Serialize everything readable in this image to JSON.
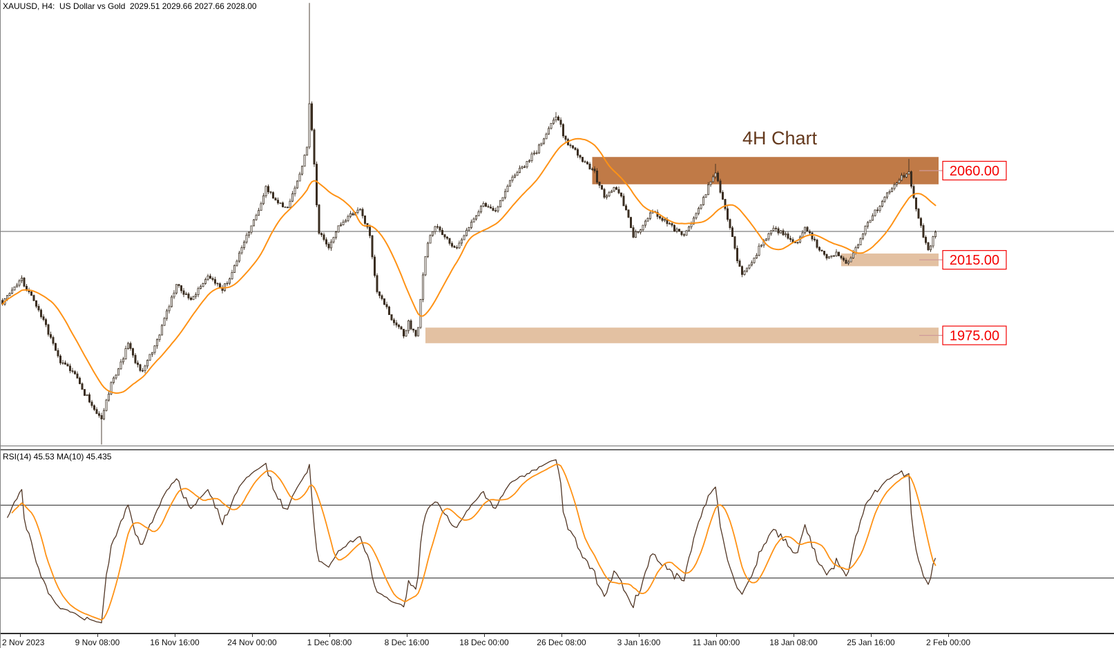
{
  "header": {
    "title": "XAUUSD, H4:  US Dollar vs Gold  2029.51 2029.66 2027.66 2028.00",
    "symbol": "XAUUSD",
    "timeframe": "H4",
    "description": "US Dollar vs Gold",
    "open": "2029.51",
    "high": "2029.66",
    "low": "2027.66",
    "close": "2028.00"
  },
  "rsi_panel": {
    "label": "RSI(14) 45.53 MA(10) 45.435",
    "indicator": "RSI",
    "period": 14,
    "value": 45.53,
    "ma_period": 10,
    "ma_value": 45.435
  },
  "chart_data": {
    "type": "candlestick",
    "title": "XAUUSD H4 - US Dollar vs Gold",
    "annotation": {
      "text": "4H Chart",
      "color": "#653a1e"
    },
    "bars": 387,
    "bar_step": 3.5,
    "bar0_x": 2.5,
    "seed": 7,
    "ylim": [
      1919.0,
      2147.5
    ],
    "price_line": 2028.8,
    "price_line_color": "#5f5f5f",
    "candle_up_color": "#ffffff",
    "candle_down_color": "#3a2d20",
    "candle_stroke_color": "#3a2d20",
    "ma_color": "#ff9215",
    "ma_period": 20,
    "price_keypoints": [
      [
        0,
        1993
      ],
      [
        4,
        1999
      ],
      [
        8,
        2004
      ],
      [
        12,
        1996
      ],
      [
        16,
        1985
      ],
      [
        20,
        1974
      ],
      [
        24,
        1962
      ],
      [
        28,
        1958
      ],
      [
        31,
        1953
      ],
      [
        34,
        1946
      ],
      [
        38,
        1937
      ],
      [
        41,
        1933
      ],
      [
        45,
        1950
      ],
      [
        48,
        1958
      ],
      [
        52,
        1971
      ],
      [
        55,
        1962
      ],
      [
        58,
        1957
      ],
      [
        62,
        1967
      ],
      [
        65,
        1977
      ],
      [
        68,
        1988
      ],
      [
        72,
        2002
      ],
      [
        75,
        1998
      ],
      [
        78,
        1994
      ],
      [
        82,
        2000
      ],
      [
        85,
        2006
      ],
      [
        88,
        2003
      ],
      [
        91,
        1999
      ],
      [
        95,
        2008
      ],
      [
        98,
        2017
      ],
      [
        101,
        2026
      ],
      [
        105,
        2037
      ],
      [
        109,
        2051
      ],
      [
        112,
        2047
      ],
      [
        114,
        2043
      ],
      [
        118,
        2041
      ],
      [
        121,
        2050
      ],
      [
        124,
        2062
      ],
      [
        126,
        2072
      ],
      [
        127,
        2095
      ],
      [
        128,
        2080
      ],
      [
        129,
        2062
      ],
      [
        130,
        2042
      ],
      [
        131,
        2028
      ],
      [
        133,
        2024
      ],
      [
        135,
        2021
      ],
      [
        137,
        2026
      ],
      [
        139,
        2031
      ],
      [
        142,
        2035
      ],
      [
        144,
        2038
      ],
      [
        148,
        2040
      ],
      [
        150,
        2034
      ],
      [
        152,
        2026
      ],
      [
        154,
        2007
      ],
      [
        155,
        1998
      ],
      [
        157,
        1994
      ],
      [
        159,
        1989
      ],
      [
        161,
        1984
      ],
      [
        164,
        1979
      ],
      [
        166,
        1976
      ],
      [
        168,
        1982
      ],
      [
        170,
        1977
      ],
      [
        171,
        1974
      ],
      [
        172,
        1980
      ],
      [
        173,
        1994
      ],
      [
        174,
        2006
      ],
      [
        175,
        2017
      ],
      [
        177,
        2026
      ],
      [
        179,
        2032
      ],
      [
        181,
        2029
      ],
      [
        184,
        2026
      ],
      [
        186,
        2022
      ],
      [
        188,
        2020
      ],
      [
        191,
        2026
      ],
      [
        194,
        2033
      ],
      [
        196,
        2037
      ],
      [
        199,
        2043
      ],
      [
        202,
        2041
      ],
      [
        204,
        2039
      ],
      [
        206,
        2044
      ],
      [
        208,
        2050
      ],
      [
        210,
        2054
      ],
      [
        212,
        2057
      ],
      [
        214,
        2060
      ],
      [
        216,
        2062
      ],
      [
        218,
        2066
      ],
      [
        221,
        2070
      ],
      [
        223,
        2074
      ],
      [
        226,
        2082
      ],
      [
        229,
        2088
      ],
      [
        231,
        2083
      ],
      [
        232,
        2078
      ],
      [
        234,
        2074
      ],
      [
        236,
        2071
      ],
      [
        239,
        2067
      ],
      [
        241,
        2064
      ],
      [
        243,
        2061
      ],
      [
        245,
        2059
      ],
      [
        247,
        2052
      ],
      [
        249,
        2046
      ],
      [
        251,
        2048
      ],
      [
        254,
        2051
      ],
      [
        256,
        2046
      ],
      [
        258,
        2040
      ],
      [
        260,
        2031
      ],
      [
        261,
        2026
      ],
      [
        263,
        2029
      ],
      [
        265,
        2032
      ],
      [
        267,
        2036
      ],
      [
        269,
        2039
      ],
      [
        271,
        2037
      ],
      [
        274,
        2034
      ],
      [
        276,
        2032
      ],
      [
        278,
        2030
      ],
      [
        280,
        2029
      ],
      [
        282,
        2028
      ],
      [
        284,
        2031
      ],
      [
        286,
        2035
      ],
      [
        288,
        2041
      ],
      [
        291,
        2049
      ],
      [
        293,
        2055
      ],
      [
        295,
        2059
      ],
      [
        297,
        2050
      ],
      [
        299,
        2040
      ],
      [
        301,
        2031
      ],
      [
        302,
        2026
      ],
      [
        304,
        2015
      ],
      [
        306,
        2007
      ],
      [
        308,
        2010
      ],
      [
        311,
        2015
      ],
      [
        313,
        2020
      ],
      [
        315,
        2024
      ],
      [
        317,
        2027
      ],
      [
        319,
        2030
      ],
      [
        321,
        2029
      ],
      [
        324,
        2028
      ],
      [
        326,
        2025
      ],
      [
        328,
        2022
      ],
      [
        330,
        2026
      ],
      [
        332,
        2030
      ],
      [
        334,
        2028
      ],
      [
        336,
        2024
      ],
      [
        338,
        2019
      ],
      [
        341,
        2015
      ],
      [
        343,
        2017
      ],
      [
        345,
        2018
      ],
      [
        347,
        2015
      ],
      [
        349,
        2012
      ],
      [
        351,
        2016
      ],
      [
        354,
        2022
      ],
      [
        356,
        2028
      ],
      [
        358,
        2034
      ],
      [
        360,
        2037
      ],
      [
        362,
        2040
      ],
      [
        364,
        2044
      ],
      [
        366,
        2048
      ],
      [
        368,
        2051
      ],
      [
        371,
        2055
      ],
      [
        373,
        2058
      ],
      [
        375,
        2060
      ],
      [
        376,
        2052
      ],
      [
        378,
        2040
      ],
      [
        380,
        2032
      ],
      [
        381,
        2026
      ],
      [
        383,
        2018
      ],
      [
        385,
        2026
      ],
      [
        386,
        2028.5
      ]
    ],
    "wick_spikes": [
      [
        41,
        1919.5,
        "low"
      ],
      [
        127,
        2146,
        "high"
      ],
      [
        229,
        2090,
        "high"
      ],
      [
        295,
        2063.5,
        "high"
      ],
      [
        375,
        2066,
        "high"
      ]
    ],
    "zones": [
      {
        "label": "2060.00",
        "price_top": 2067.0,
        "price_bottom": 2053.0,
        "start_bar": 244,
        "color": "#c07a47"
      },
      {
        "label": "2015.00",
        "price_top": 2017.5,
        "price_bottom": 2011.0,
        "start_bar": 347,
        "color": "#e3c1a2"
      },
      {
        "label": "1975.00",
        "price_top": 1979.5,
        "price_bottom": 1971.5,
        "start_bar": 175,
        "color": "#e3c1a2"
      }
    ],
    "label_color": "#f40000",
    "leader_color": "#cf9a9a",
    "x_ticks": [
      "2 Nov 2023",
      "9 Nov 08:00",
      "16 Nov 16:00",
      "24 Nov 00:00",
      "1 Dec 08:00",
      "8 Dec 16:00",
      "18 Dec 00:00",
      "26 Dec 08:00",
      "3 Jan 16:00",
      "11 Jan 00:00",
      "18 Jan 08:00",
      "25 Jan 16:00",
      "2 Feb 00:00"
    ],
    "rsi": {
      "type": "line",
      "period": 14,
      "ma_period": 10,
      "current": 45.53,
      "ma_current": 45.435,
      "levels": [
        70,
        30
      ],
      "range": [
        0,
        100
      ],
      "line_color": "#503524",
      "ma_color": "#ff9215",
      "level_color": "#1f1f1f"
    }
  }
}
